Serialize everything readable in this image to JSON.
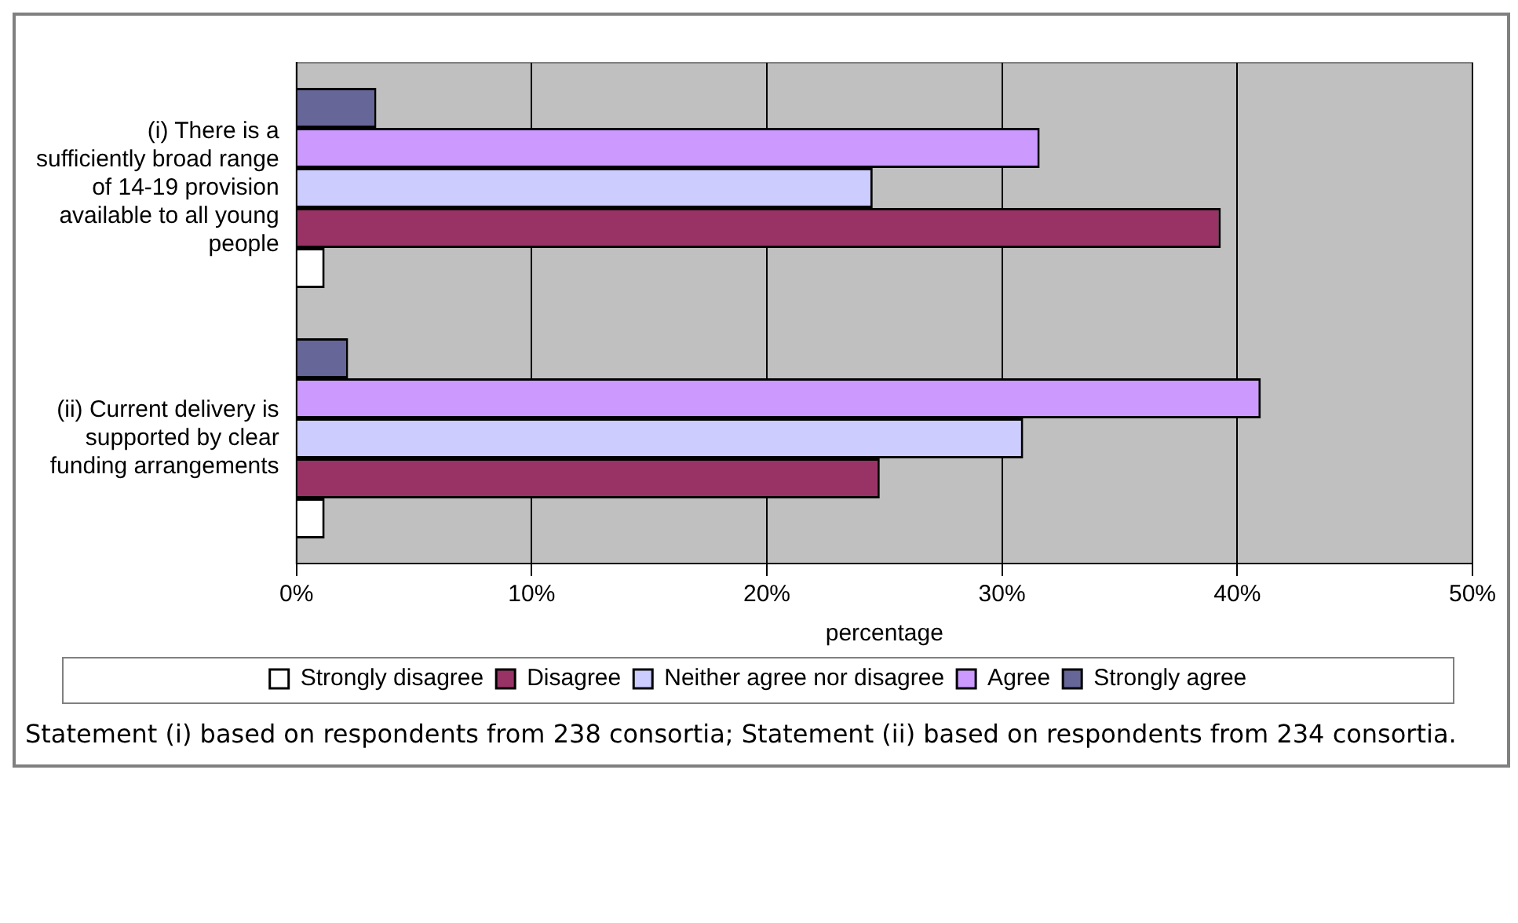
{
  "chart_data": {
    "type": "bar",
    "orientation": "horizontal",
    "categories": [
      "(i) There is a sufficiently broad range of 14-19 provision available to all young people",
      "(ii) Current delivery is supported by clear funding arrangements"
    ],
    "series": [
      {
        "name": "Strongly disagree",
        "color": "#ffffff",
        "values": [
          1.2,
          1.2
        ]
      },
      {
        "name": "Disagree",
        "color": "#993366",
        "values": [
          39.3,
          24.8
        ]
      },
      {
        "name": "Neither agree nor disagree",
        "color": "#ccccff",
        "values": [
          24.5,
          30.9
        ]
      },
      {
        "name": "Agree",
        "color": "#cc99ff",
        "values": [
          31.6,
          41.0
        ]
      },
      {
        "name": "Strongly agree",
        "color": "#666699",
        "values": [
          3.4,
          2.2
        ]
      }
    ],
    "xlim": [
      0,
      50
    ],
    "xticks": [
      {
        "value": 0,
        "label": "0%"
      },
      {
        "value": 10,
        "label": "10%"
      },
      {
        "value": 20,
        "label": "20%"
      },
      {
        "value": 30,
        "label": "30%"
      },
      {
        "value": 40,
        "label": "40%"
      },
      {
        "value": 50,
        "label": "50%"
      }
    ],
    "xlabel": "percentage",
    "grid": "x",
    "legend": "bottom",
    "annotations": [
      "Statement (i) based on respondents from 238 consortia; Statement (ii) based on respondents from 234 consortia."
    ]
  }
}
